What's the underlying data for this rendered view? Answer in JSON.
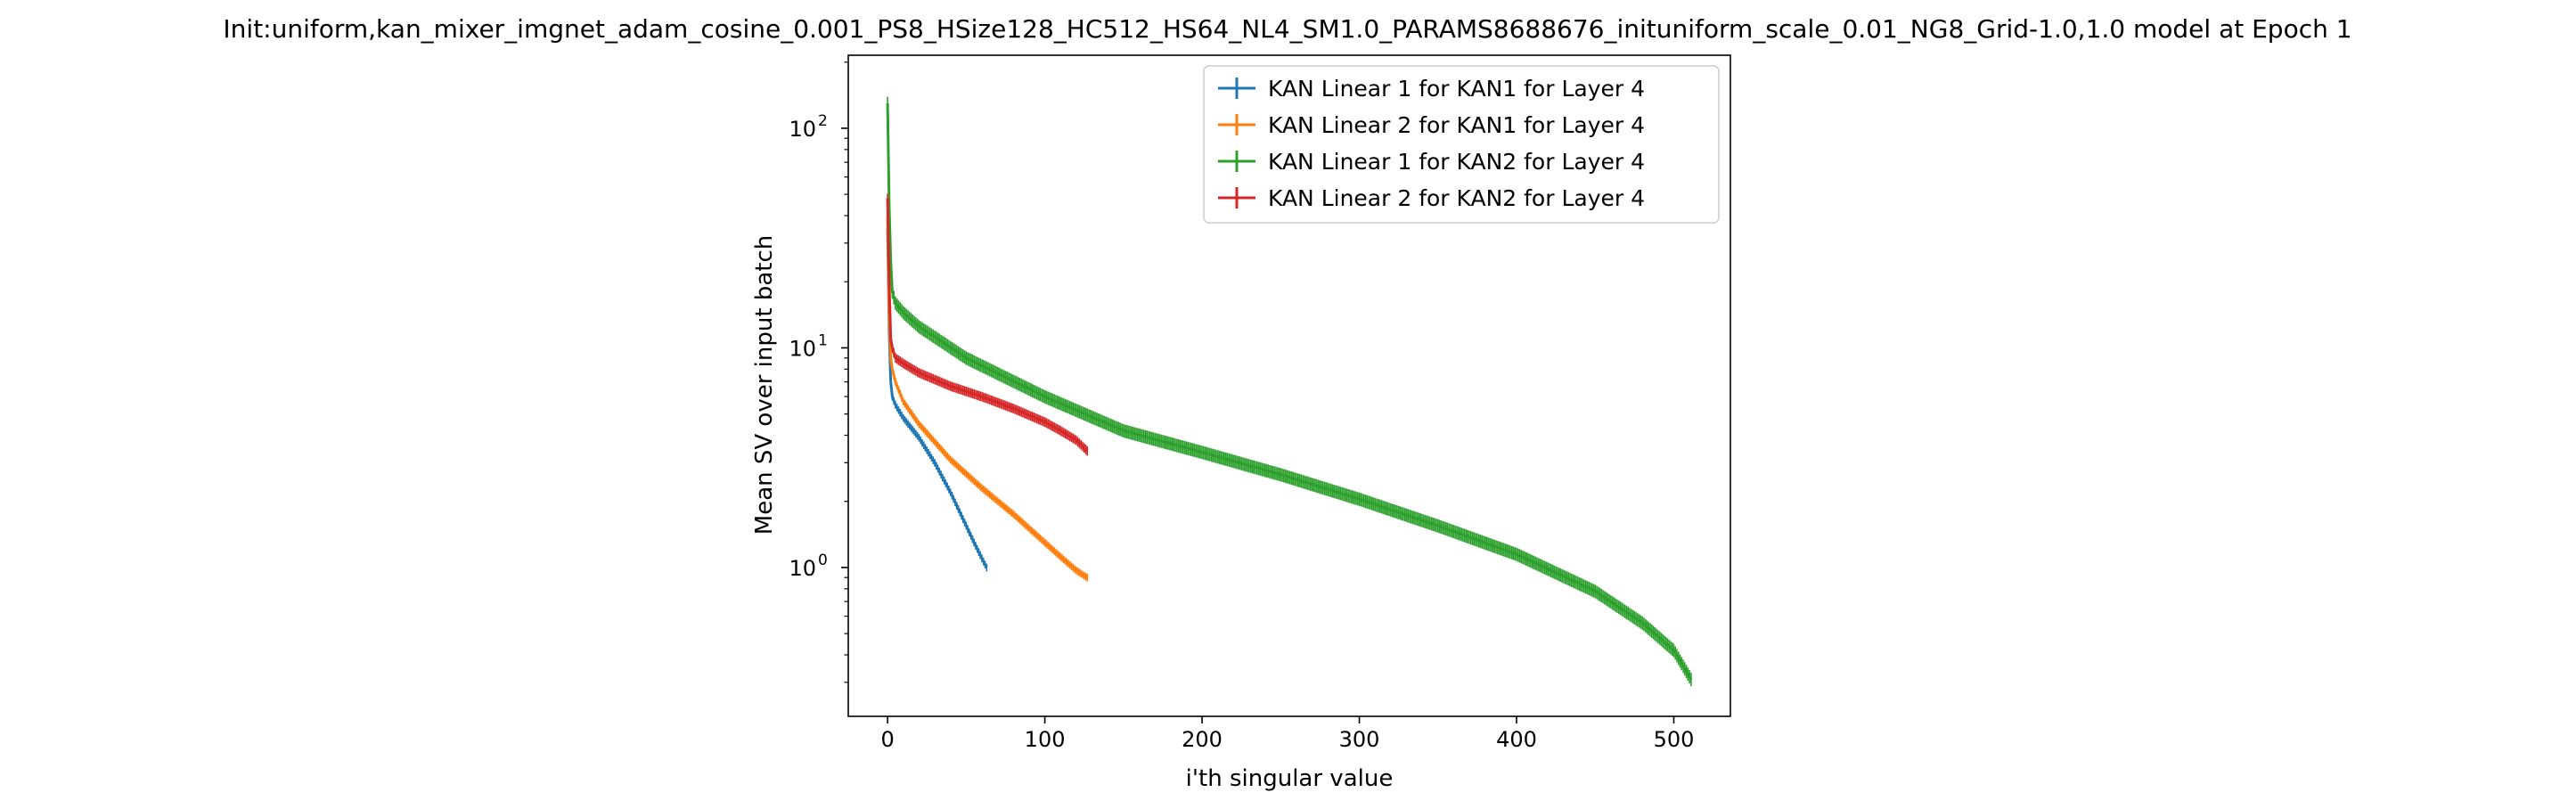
{
  "chart_data": {
    "type": "line",
    "title": "Init:uniform,kan_mixer_imgnet_adam_cosine_0.001_PS8_HSize128_HC512_HS64_NL4_SM1.0_PARAMS8688676_inituniform_scale_0.01_NG8_Grid-1.0,1.0 model at Epoch 1",
    "xlabel": "i'th singular value",
    "ylabel": "Mean SV over input batch",
    "xscale": "linear",
    "yscale": "log",
    "xlim": [
      -25,
      536
    ],
    "ylim": [
      0.21,
      215
    ],
    "x_ticks": [
      0,
      100,
      200,
      300,
      400,
      500
    ],
    "x_tick_labels": [
      "0",
      "100",
      "200",
      "300",
      "400",
      "500"
    ],
    "y_ticks": [
      1,
      10,
      100
    ],
    "y_tick_labels": [
      "10",
      "10",
      "10"
    ],
    "y_tick_exponents": [
      "0",
      "1",
      "2"
    ],
    "grid": false,
    "legend_position": "top-right",
    "error_bars": true,
    "series": [
      {
        "name": "KAN Linear 1 for KAN1 for Layer 4",
        "color": "#1f77b4",
        "n_points": 64,
        "error_rel": 0.04,
        "x": [
          0,
          1,
          2,
          3,
          5,
          10,
          20,
          30,
          40,
          50,
          55,
          60,
          63
        ],
        "values": [
          35,
          12,
          7,
          6,
          5.5,
          4.8,
          3.9,
          3.0,
          2.2,
          1.55,
          1.3,
          1.1,
          1.0
        ]
      },
      {
        "name": "KAN Linear 2 for KAN1 for Layer 4",
        "color": "#ff7f0e",
        "n_points": 128,
        "error_rel": 0.04,
        "x": [
          0,
          1,
          2,
          3,
          5,
          10,
          20,
          40,
          60,
          80,
          100,
          110,
          120,
          127
        ],
        "values": [
          40,
          14,
          9,
          8,
          7,
          5.7,
          4.5,
          3.1,
          2.3,
          1.75,
          1.3,
          1.12,
          0.97,
          0.9
        ]
      },
      {
        "name": "KAN Linear 1 for KAN2 for Layer 4",
        "color": "#2ca02c",
        "n_points": 512,
        "error_rel": 0.07,
        "x": [
          0,
          1,
          2,
          3,
          5,
          10,
          20,
          50,
          100,
          150,
          200,
          250,
          300,
          350,
          400,
          450,
          480,
          500,
          511
        ],
        "values": [
          130,
          45,
          25,
          18,
          16,
          14.5,
          12.5,
          9,
          6,
          4.2,
          3.35,
          2.65,
          2.05,
          1.55,
          1.15,
          0.78,
          0.56,
          0.42,
          0.31
        ]
      },
      {
        "name": "KAN Linear 2 for KAN2 for Layer 4",
        "color": "#d62728",
        "n_points": 128,
        "error_rel": 0.05,
        "x": [
          0,
          1,
          2,
          3,
          5,
          10,
          20,
          40,
          60,
          80,
          100,
          110,
          120,
          127
        ],
        "values": [
          48,
          20,
          11,
          10,
          9,
          8.5,
          7.7,
          6.7,
          6.0,
          5.3,
          4.6,
          4.2,
          3.8,
          3.4
        ]
      }
    ]
  }
}
